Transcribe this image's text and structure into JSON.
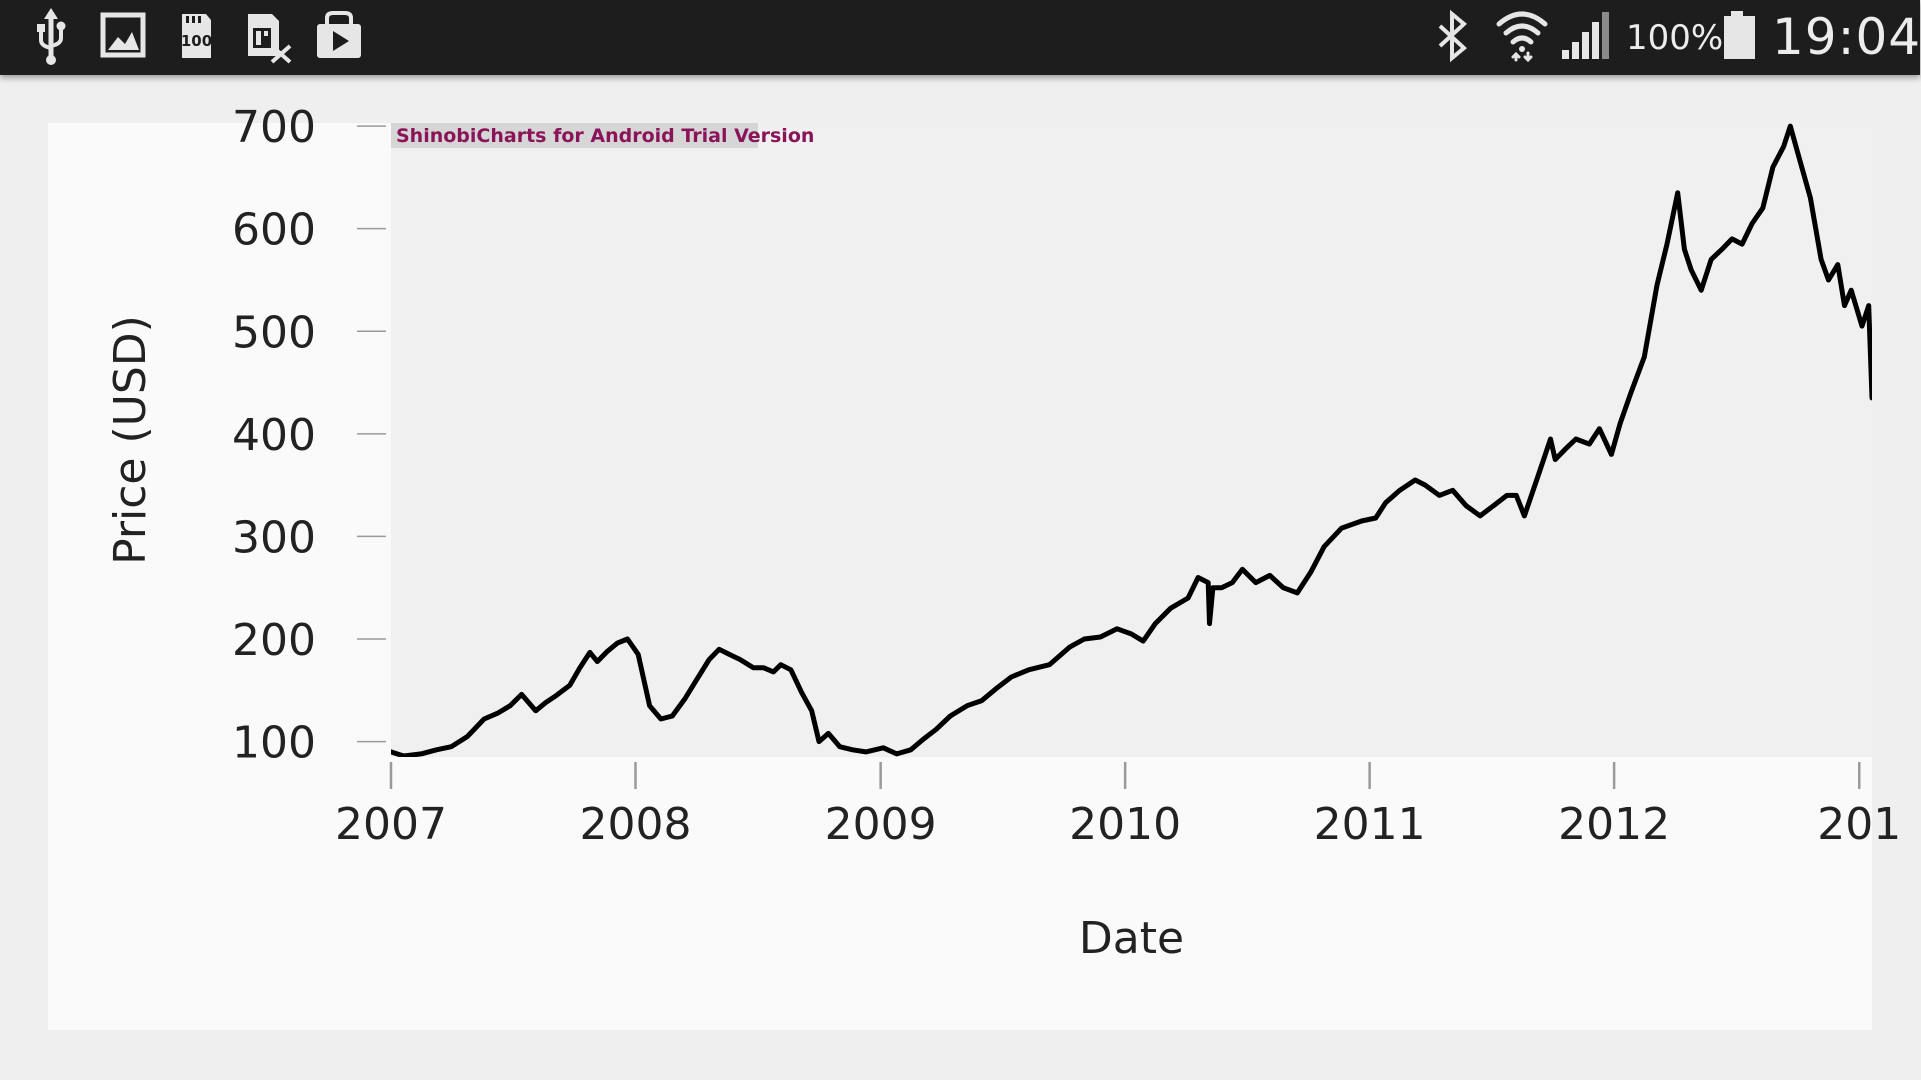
{
  "status_bar": {
    "battery_percent_text": "100%",
    "time": "19:04",
    "icons": [
      "usb-icon",
      "gallery-icon",
      "sd-card-100-icon",
      "sim-card-off-icon",
      "play-store-icon",
      "bluetooth-icon",
      "wifi-icon",
      "cellular-signal-icon",
      "battery-full-icon"
    ],
    "battery_level": 1.0
  },
  "colors": {
    "status_bar_bg": "#1d1d1d",
    "page_bg": "#efefef",
    "card_bg": "#fafafa",
    "plot_bg": "#f0f0f0",
    "series": "#000000",
    "watermark": "#8a1459",
    "watermark_bg": "#d6d6d6"
  },
  "watermark": "ShinobiCharts for Android Trial Version",
  "chart_data": {
    "type": "line",
    "title": "",
    "xlabel": "Date",
    "ylabel": "Price (USD)",
    "ylim": [
      85,
      703
    ],
    "xlim": [
      "2007-01-01",
      "2013-01-20"
    ],
    "y_ticks": [
      100,
      200,
      300,
      400,
      500,
      600,
      700
    ],
    "x_ticks": [
      "2007",
      "2008",
      "2009",
      "2010",
      "2011",
      "2012",
      "201"
    ],
    "grid": false,
    "legend": "none",
    "series": [
      {
        "x": [
          "2007-01-01",
          "2007-01-20",
          "2007-02-15",
          "2007-03-10",
          "2007-04-01",
          "2007-04-25",
          "2007-05-20",
          "2007-06-10",
          "2007-06-28",
          "2007-07-15",
          "2007-08-05",
          "2007-08-20",
          "2007-09-05",
          "2007-09-25",
          "2007-10-10",
          "2007-10-25",
          "2007-11-05",
          "2007-11-20",
          "2007-12-05",
          "2007-12-20",
          "2008-01-05",
          "2008-01-22",
          "2008-02-08",
          "2008-02-25",
          "2008-03-15",
          "2008-04-01",
          "2008-04-20",
          "2008-05-05",
          "2008-05-20",
          "2008-06-05",
          "2008-06-25",
          "2008-07-10",
          "2008-07-25",
          "2008-08-05",
          "2008-08-20",
          "2008-09-05",
          "2008-09-20",
          "2008-10-01",
          "2008-10-15",
          "2008-11-01",
          "2008-11-20",
          "2008-12-10",
          "2009-01-05",
          "2009-01-25",
          "2009-02-15",
          "2009-03-05",
          "2009-03-25",
          "2009-04-15",
          "2009-05-10",
          "2009-06-01",
          "2009-06-25",
          "2009-07-15",
          "2009-08-10",
          "2009-09-10",
          "2009-10-10",
          "2009-11-01",
          "2009-11-25",
          "2009-12-20",
          "2010-01-10",
          "2010-01-28",
          "2010-02-15",
          "2010-03-10",
          "2010-04-05",
          "2010-04-20",
          "2010-05-05",
          "2010-05-07",
          "2010-05-12",
          "2010-05-25",
          "2010-06-10",
          "2010-06-25",
          "2010-07-15",
          "2010-08-05",
          "2010-08-25",
          "2010-09-15",
          "2010-10-05",
          "2010-10-25",
          "2010-11-20",
          "2010-12-20",
          "2011-01-10",
          "2011-01-25",
          "2011-02-15",
          "2011-03-10",
          "2011-03-25",
          "2011-04-15",
          "2011-05-05",
          "2011-05-25",
          "2011-06-15",
          "2011-07-05",
          "2011-07-25",
          "2011-08-08",
          "2011-08-20",
          "2011-09-10",
          "2011-09-28",
          "2011-10-05",
          "2011-10-20",
          "2011-11-05",
          "2011-11-25",
          "2011-12-10",
          "2011-12-28",
          "2012-01-10",
          "2012-01-26",
          "2012-02-15",
          "2012-03-05",
          "2012-03-20",
          "2012-04-05",
          "2012-04-15",
          "2012-04-25",
          "2012-05-10",
          "2012-05-25",
          "2012-06-10",
          "2012-06-25",
          "2012-07-10",
          "2012-07-25",
          "2012-08-10",
          "2012-08-25",
          "2012-09-10",
          "2012-09-20",
          "2012-10-05",
          "2012-10-20",
          "2012-11-05",
          "2012-11-16",
          "2012-11-30",
          "2012-12-10",
          "2012-12-20",
          "2013-01-05",
          "2013-01-15",
          "2013-01-20"
        ],
        "y": [
          90,
          86,
          88,
          92,
          95,
          105,
          122,
          128,
          135,
          146,
          130,
          138,
          145,
          155,
          172,
          187,
          178,
          188,
          196,
          200,
          185,
          135,
          122,
          125,
          142,
          160,
          180,
          190,
          185,
          180,
          172,
          172,
          168,
          175,
          170,
          148,
          130,
          100,
          108,
          95,
          92,
          90,
          94,
          88,
          92,
          102,
          112,
          125,
          135,
          140,
          153,
          163,
          170,
          175,
          192,
          200,
          202,
          210,
          205,
          198,
          215,
          230,
          240,
          260,
          255,
          215,
          250,
          250,
          255,
          268,
          255,
          262,
          250,
          245,
          265,
          290,
          308,
          315,
          318,
          333,
          345,
          355,
          350,
          340,
          345,
          330,
          320,
          330,
          340,
          340,
          320,
          360,
          395,
          375,
          385,
          395,
          390,
          405,
          380,
          410,
          440,
          475,
          545,
          585,
          635,
          580,
          560,
          540,
          570,
          580,
          590,
          585,
          605,
          620,
          660,
          680,
          700,
          665,
          630,
          570,
          550,
          565,
          525,
          540,
          505,
          525,
          435
        ]
      }
    ]
  }
}
